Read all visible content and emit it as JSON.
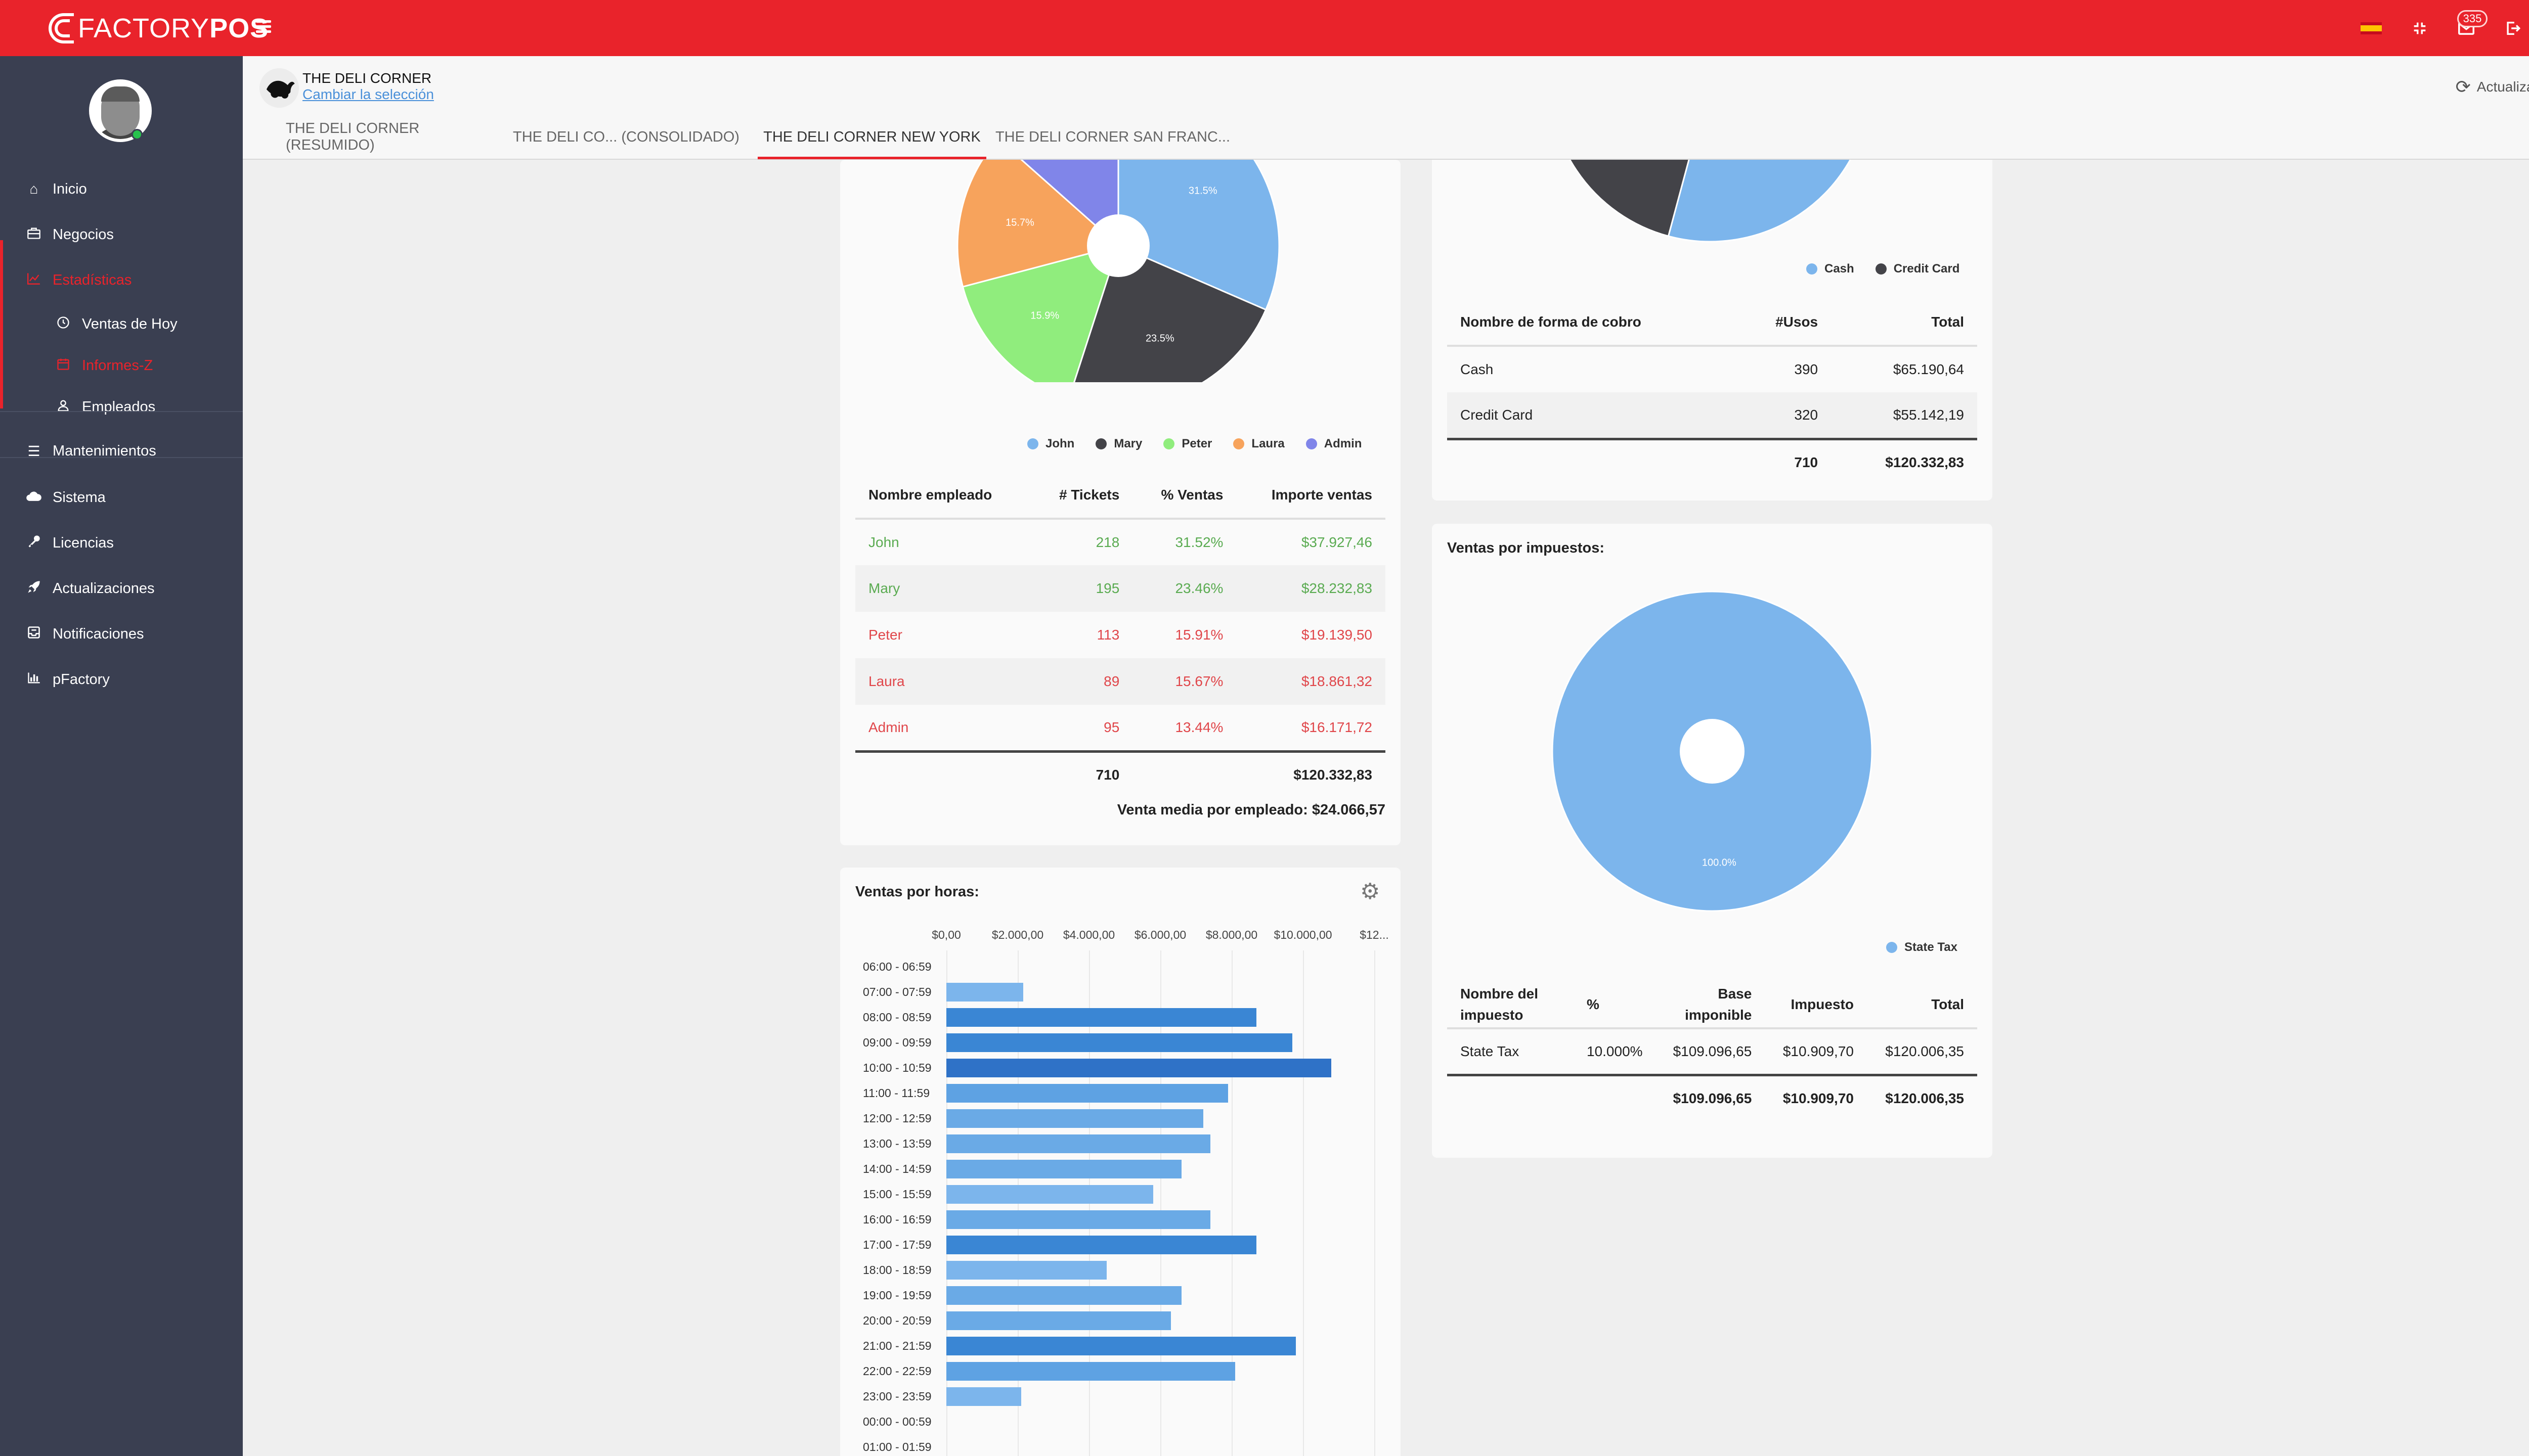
{
  "app": {
    "logo_prefix": "FACTORY",
    "logo_suffix": "POS",
    "notifications_count": "335"
  },
  "sidebar": {
    "items": [
      {
        "label": "Inicio",
        "icon": "home-icon"
      },
      {
        "label": "Negocios",
        "icon": "briefcase-icon"
      },
      {
        "label": "Estadísticas",
        "icon": "chart-icon"
      },
      {
        "label": "Ventas de Hoy",
        "icon": "clock-icon"
      },
      {
        "label": "Informes-Z",
        "icon": "calendar-icon"
      },
      {
        "label": "Empleados",
        "icon": "user-icon"
      },
      {
        "label": "Mantenimientos",
        "icon": "list-icon"
      },
      {
        "label": "Sistema",
        "icon": "cloud-icon"
      },
      {
        "label": "Licencias",
        "icon": "key-icon"
      },
      {
        "label": "Actualizaciones",
        "icon": "rocket-icon"
      },
      {
        "label": "Notificaciones",
        "icon": "inbox-icon"
      },
      {
        "label": "pFactory",
        "icon": "bar-chart-icon"
      }
    ]
  },
  "store": {
    "name": "THE DELI CORNER",
    "change_label": "Cambiar la selección",
    "refresh_label": "Actualizar todo",
    "tabs": [
      {
        "label": "THE DELI CORNER (RESUMIDO)"
      },
      {
        "label": "THE DELI CO... (CONSOLIDADO)"
      },
      {
        "label": "THE DELI CORNER NEW YORK"
      },
      {
        "label": "THE DELI CORNER SAN FRANC..."
      }
    ]
  },
  "employees": {
    "pie_labels": [
      "31.5%",
      "23.5%",
      "15.9%",
      "15.7%"
    ],
    "legend": [
      "John",
      "Mary",
      "Peter",
      "Laura",
      "Admin"
    ],
    "colors": [
      "#7cb5ec",
      "#434348",
      "#90ed7d",
      "#f7a35c",
      "#8085e9"
    ],
    "headers": [
      "Nombre empleado",
      "# Tickets",
      "% Ventas",
      "Importe ventas"
    ],
    "rows": [
      {
        "name": "John",
        "tickets": "218",
        "pct": "31.52%",
        "amount": "$37.927,46"
      },
      {
        "name": "Mary",
        "tickets": "195",
        "pct": "23.46%",
        "amount": "$28.232,83"
      },
      {
        "name": "Peter",
        "tickets": "113",
        "pct": "15.91%",
        "amount": "$19.139,50"
      },
      {
        "name": "Laura",
        "tickets": "89",
        "pct": "15.67%",
        "amount": "$18.861,32"
      },
      {
        "name": "Admin",
        "tickets": "95",
        "pct": "13.44%",
        "amount": "$16.171,72"
      }
    ],
    "total_tickets": "710",
    "total_amount": "$120.332,83",
    "average": "Venta media por empleado: $24.066,57"
  },
  "payments": {
    "legend": [
      "Cash",
      "Credit Card"
    ],
    "colors": [
      "#7cb5ec",
      "#434348"
    ],
    "headers": [
      "Nombre de forma de cobro",
      "#Usos",
      "Total"
    ],
    "rows": [
      {
        "name": "Cash",
        "uses": "390",
        "total": "$65.190,64"
      },
      {
        "name": "Credit Card",
        "uses": "320",
        "total": "$55.142,19"
      }
    ],
    "total_uses": "710",
    "total": "$120.332,83"
  },
  "taxes": {
    "title": "Ventas por impuestos:",
    "pie_label": "100.0%",
    "legend": [
      "State Tax"
    ],
    "color": "#7cb5ec",
    "headers": [
      "Nombre del impuesto",
      "%",
      "Base imponible",
      "Impuesto",
      "Total"
    ],
    "rows": [
      {
        "name": "State Tax",
        "pct": "10.000%",
        "base": "$109.096,65",
        "tax": "$10.909,70",
        "total": "$120.006,35"
      }
    ],
    "total_base": "$109.096,65",
    "total_tax": "$10.909,70",
    "total": "$120.006,35"
  },
  "chart_data": [
    {
      "type": "pie",
      "title": "",
      "categories": [
        "John",
        "Mary",
        "Peter",
        "Laura",
        "Admin"
      ],
      "values": [
        31.52,
        23.46,
        15.91,
        15.67,
        13.44
      ],
      "legend": "bottom-center"
    },
    {
      "type": "pie",
      "title": "",
      "categories": [
        "Cash",
        "Credit Card"
      ],
      "values": [
        54.18,
        45.82
      ],
      "legend": "bottom-center"
    },
    {
      "type": "pie",
      "title": "Ventas por impuestos:",
      "categories": [
        "State Tax"
      ],
      "values": [
        100.0
      ],
      "legend": "bottom-right"
    },
    {
      "type": "bar",
      "orientation": "horizontal",
      "title": "Ventas por horas:",
      "tick_labels": [
        "$0,00",
        "$2.000,00",
        "$4.000,00",
        "$6.000,00",
        "$8.000,00",
        "$10.000,00",
        "$12..."
      ],
      "xlim": [
        0,
        12000
      ],
      "grid": true,
      "categories": [
        "06:00 - 06:59",
        "07:00 - 07:59",
        "08:00 - 08:59",
        "09:00 - 09:59",
        "10:00 - 10:59",
        "11:00 - 11:59",
        "12:00 - 12:59",
        "13:00 - 13:59",
        "14:00 - 14:59",
        "15:00 - 15:59",
        "16:00 - 16:59",
        "17:00 - 17:59",
        "18:00 - 18:59",
        "19:00 - 19:59",
        "20:00 - 20:59",
        "21:00 - 21:59",
        "22:00 - 22:59",
        "23:00 - 23:59",
        "00:00 - 00:59",
        "01:00 - 01:59"
      ],
      "values": [
        0,
        2150,
        8700,
        9700,
        10800,
        7900,
        7200,
        7400,
        6600,
        5800,
        7400,
        8700,
        4500,
        6600,
        6300,
        9800,
        8100,
        2100,
        0,
        0
      ],
      "colors": [
        "#7cb5ec",
        "#7cb5ec",
        "#3a86d4",
        "#3a86d4",
        "#2f72c7",
        "#5ea2e3",
        "#6aaae6",
        "#6aaae6",
        "#6aaae6",
        "#7cb5ec",
        "#6aaae6",
        "#3a86d4",
        "#7cb5ec",
        "#6aaae6",
        "#6aaae6",
        "#3a86d4",
        "#5ea2e3",
        "#7cb5ec",
        "#7cb5ec",
        "#7cb5ec"
      ]
    }
  ]
}
